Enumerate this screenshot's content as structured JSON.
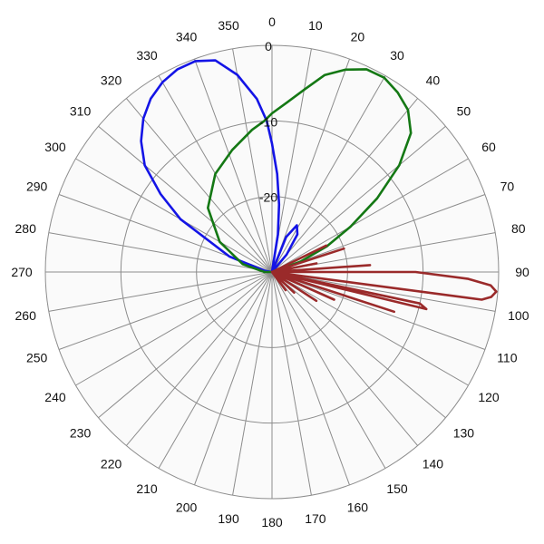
{
  "chart_data": {
    "type": "polar-line",
    "angle_unit": "degrees",
    "angle_zero": "top",
    "angle_direction": "clockwise",
    "angle_ticks": [
      0,
      10,
      20,
      30,
      40,
      50,
      60,
      70,
      80,
      90,
      100,
      110,
      120,
      130,
      140,
      150,
      160,
      170,
      180,
      190,
      200,
      210,
      220,
      230,
      240,
      250,
      260,
      270,
      280,
      290,
      300,
      310,
      320,
      330,
      340,
      350
    ],
    "angle_tick_labels": [
      "0",
      "10",
      "20",
      "30",
      "40",
      "50",
      "60",
      "70",
      "80",
      "90",
      "100",
      "110",
      "120",
      "130",
      "140",
      "150",
      "160",
      "170",
      "180",
      "190",
      "200",
      "210",
      "220",
      "230",
      "240",
      "250",
      "260",
      "270",
      "280",
      "290",
      "300",
      "310",
      "320",
      "330",
      "340",
      "350"
    ],
    "radial_range": [
      -30,
      0
    ],
    "radial_ticks": [
      0,
      -10,
      -20,
      -30
    ],
    "radial_tick_labels": [
      "0",
      "-10",
      "-20"
    ],
    "grid": true,
    "colors": {
      "background": "#fafafa",
      "grid": "#8c8c8c",
      "series_1": "#1414e6",
      "series_2": "#147814",
      "series_3": "#9a2a2a"
    },
    "series": [
      {
        "color": "#1414e6",
        "points": [
          [
            270,
            -30
          ],
          [
            280,
            -29
          ],
          [
            290,
            -24
          ],
          [
            300,
            -16
          ],
          [
            305,
            -12
          ],
          [
            310,
            -8
          ],
          [
            315,
            -5.5
          ],
          [
            320,
            -3.5
          ],
          [
            325,
            -2
          ],
          [
            330,
            -1
          ],
          [
            335,
            -0.4
          ],
          [
            340,
            -0.3
          ],
          [
            345,
            -1
          ],
          [
            350,
            -3.5
          ],
          [
            355,
            -7
          ],
          [
            358,
            -10
          ],
          [
            0,
            -13
          ],
          [
            3,
            -17
          ],
          [
            6,
            -21
          ],
          [
            9,
            -25
          ],
          [
            12,
            -30
          ]
        ]
      },
      {
        "color": "#1414e6",
        "points": [
          [
            15,
            -30
          ],
          [
            22,
            -25
          ],
          [
            28,
            -23
          ],
          [
            34,
            -24
          ],
          [
            40,
            -27
          ],
          [
            46,
            -30
          ]
        ]
      },
      {
        "color": "#147814",
        "points": [
          [
            258,
            -30
          ],
          [
            270,
            -29
          ],
          [
            285,
            -26
          ],
          [
            300,
            -22
          ],
          [
            315,
            -18
          ],
          [
            330,
            -15
          ],
          [
            342,
            -13
          ],
          [
            352,
            -11
          ],
          [
            357,
            -10
          ],
          [
            0,
            -9
          ],
          [
            5,
            -7.5
          ],
          [
            10,
            -5.5
          ],
          [
            15,
            -3
          ],
          [
            20,
            -1.5
          ],
          [
            25,
            -0.4
          ],
          [
            30,
            -0.3
          ],
          [
            35,
            -1
          ],
          [
            40,
            -2
          ],
          [
            45,
            -4
          ],
          [
            50,
            -8
          ],
          [
            55,
            -13
          ],
          [
            60,
            -18
          ],
          [
            65,
            -22
          ],
          [
            70,
            -26
          ],
          [
            75,
            -30
          ]
        ]
      },
      {
        "color": "#9a2a2a",
        "points": [
          [
            62,
            -30
          ],
          [
            64,
            -22
          ],
          [
            66,
            -30
          ],
          [
            70,
            -30
          ],
          [
            72,
            -20
          ],
          [
            74,
            -30
          ],
          [
            77,
            -30
          ],
          [
            79,
            -24
          ],
          [
            81,
            -30
          ],
          [
            84,
            -30
          ],
          [
            86,
            -17
          ],
          [
            88,
            -30
          ],
          [
            89,
            -30
          ],
          [
            90,
            -11
          ],
          [
            92,
            -4
          ],
          [
            93.5,
            -1
          ],
          [
            95,
            -0.2
          ],
          [
            96.5,
            -0.8
          ],
          [
            97.5,
            -2
          ],
          [
            99,
            -30
          ],
          [
            101,
            -30
          ],
          [
            102,
            -10
          ],
          [
            103.5,
            -9
          ],
          [
            105,
            -30
          ],
          [
            106,
            -30
          ],
          [
            108,
            -13
          ],
          [
            109,
            -30
          ],
          [
            112,
            -30
          ],
          [
            114,
            -21
          ],
          [
            116,
            -30
          ],
          [
            120,
            -30
          ],
          [
            123,
            -23
          ],
          [
            126,
            -30
          ],
          [
            130,
            -30
          ],
          [
            133,
            -26
          ],
          [
            136,
            -30
          ],
          [
            140,
            -30
          ],
          [
            143,
            -27
          ],
          [
            146,
            -30
          ]
        ]
      }
    ]
  }
}
